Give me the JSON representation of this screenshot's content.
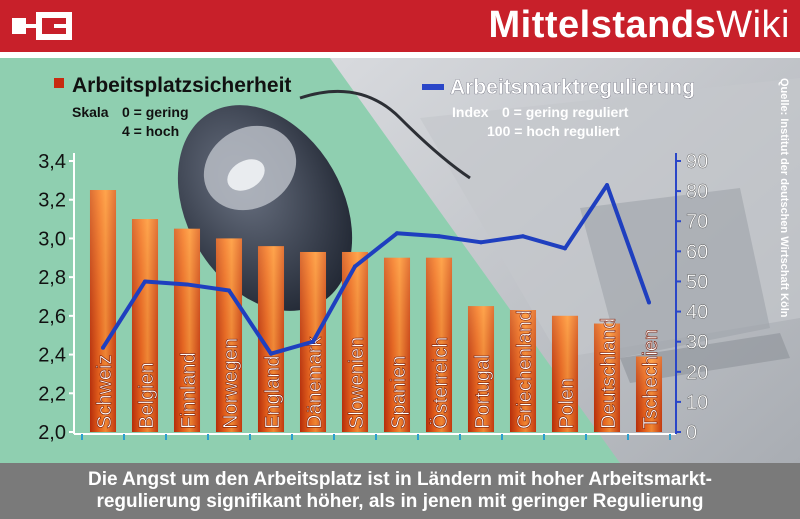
{
  "header": {
    "brand_bold": "Mittelstands",
    "brand_light": "Wiki"
  },
  "footer": {
    "line1": "Die Angst um den Arbeitsplatz ist in Ländern mit hoher Arbeitsmarkt-",
    "line2": "regulierung signifikant höher, als in jenen mit geringer Regulierung"
  },
  "source": "Quelle: Institut der deutschen Wirtschaft Köln",
  "legend": {
    "bar_title": "Arbeitsplatzsicherheit",
    "bar_scale_label": "Skala",
    "bar_scale_low": "0 = gering",
    "bar_scale_high": "4 = hoch",
    "line_title": "Arbeitsmarktregulierung",
    "line_index_label": "Index",
    "line_index_low": "0 = gering reguliert",
    "line_index_high": "100 = hoch reguliert"
  },
  "colors": {
    "header_red": "#c8202a",
    "bar_orange": "#e8501a",
    "line_blue": "#2a46c8",
    "background_green": "#8fcfb0",
    "footer_gray": "#7a7a7a"
  },
  "chart_data": {
    "type": "bar",
    "categories": [
      "Schweiz",
      "Belgien",
      "Finnland",
      "Norwegen",
      "England",
      "Dänemark",
      "Slowenien",
      "Spanien",
      "Österreich",
      "Portugal",
      "Griechenland",
      "Polen",
      "Deutschland",
      "Tschechien"
    ],
    "series": [
      {
        "name": "Arbeitsplatzsicherheit",
        "type": "bar",
        "axis": "left",
        "values": [
          3.25,
          3.1,
          3.05,
          3.0,
          2.96,
          2.93,
          2.93,
          2.9,
          2.9,
          2.65,
          2.63,
          2.6,
          2.56,
          2.39
        ]
      },
      {
        "name": "Arbeitsmarktregulierung",
        "type": "line",
        "axis": "right",
        "values": [
          28,
          50,
          49,
          47,
          26,
          30,
          55,
          66,
          65,
          63,
          65,
          61,
          82,
          43
        ]
      }
    ],
    "y_left": {
      "ylim": [
        2.0,
        3.4
      ],
      "ticks": [
        "2,0",
        "2,2",
        "2,4",
        "2,6",
        "2,8",
        "3,0",
        "3,2",
        "3,4"
      ]
    },
    "y_right": {
      "ylim": [
        0,
        90
      ],
      "ticks": [
        "0",
        "10",
        "20",
        "30",
        "40",
        "50",
        "60",
        "70",
        "80",
        "90"
      ]
    }
  }
}
